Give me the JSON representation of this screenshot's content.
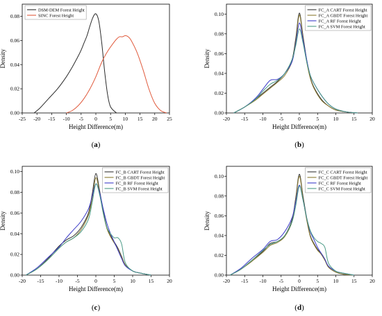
{
  "chart_data": [
    {
      "type": "line",
      "panel_label": "a",
      "xlabel": "Height Difference(m)",
      "ylabel": "Density",
      "xlim": [
        -25,
        25
      ],
      "ylim": [
        0,
        0.09
      ],
      "xticks": [
        -25,
        -20,
        -15,
        -10,
        -5,
        0,
        5,
        10,
        15,
        20,
        25
      ],
      "yticks": [
        0,
        0.02,
        0.04,
        0.06,
        0.08
      ],
      "ytick_labels": [
        "0.00",
        "0.02",
        "0.04",
        "0.06",
        "0.08"
      ],
      "legend_position": "top-left",
      "series": [
        {
          "name": "DSM-DEM Forest Height",
          "color": "#2b2b2b",
          "x": [
            -21,
            -19,
            -16,
            -13,
            -10,
            -8,
            -6,
            -5,
            -4,
            -3,
            -2,
            -1,
            0,
            1,
            2,
            3,
            4,
            5,
            7
          ],
          "y": [
            0,
            0.004,
            0.012,
            0.02,
            0.03,
            0.038,
            0.047,
            0.052,
            0.058,
            0.064,
            0.072,
            0.079,
            0.082,
            0.076,
            0.058,
            0.034,
            0.015,
            0.005,
            0
          ]
        },
        {
          "name": "SINC Forest Height",
          "color": "#e05a3c",
          "x": [
            -10,
            -8,
            -6,
            -4,
            -2,
            0,
            2,
            4,
            6,
            7,
            8,
            9,
            10,
            11,
            12,
            14,
            16,
            18,
            20,
            22,
            24
          ],
          "y": [
            0,
            0.002,
            0.006,
            0.012,
            0.02,
            0.03,
            0.042,
            0.051,
            0.058,
            0.061,
            0.063,
            0.063,
            0.064,
            0.063,
            0.06,
            0.05,
            0.036,
            0.02,
            0.008,
            0.002,
            0
          ]
        }
      ]
    },
    {
      "type": "line",
      "panel_label": "b",
      "xlabel": "Height Difference(m)",
      "ylabel": "Density",
      "xlim": [
        -20,
        20
      ],
      "ylim": [
        0,
        0.11
      ],
      "xticks": [
        -20,
        -15,
        -10,
        -5,
        0,
        5,
        10,
        15,
        20
      ],
      "yticks": [
        0,
        0.02,
        0.04,
        0.06,
        0.08,
        0.1
      ],
      "ytick_labels": [
        "0.00",
        "0.02",
        "0.04",
        "0.06",
        "0.08",
        "0.10"
      ],
      "legend_position": "top-right",
      "series": [
        {
          "name": "FC_A CART Forest Height",
          "color": "#333333",
          "x": [
            -18,
            -15,
            -12,
            -10,
            -8,
            -6,
            -4,
            -2,
            -1,
            0,
            1,
            2,
            3,
            4,
            6,
            8,
            10,
            13,
            16
          ],
          "y": [
            0,
            0.006,
            0.014,
            0.02,
            0.026,
            0.032,
            0.04,
            0.054,
            0.075,
            0.101,
            0.078,
            0.054,
            0.036,
            0.026,
            0.014,
            0.007,
            0.003,
            0.001,
            0
          ]
        },
        {
          "name": "FC_A GBDT Forest Height",
          "color": "#8a7a30",
          "x": [
            -18,
            -15,
            -12,
            -10,
            -8,
            -6,
            -4,
            -2,
            -1,
            0,
            1,
            2,
            3,
            4,
            6,
            8,
            10,
            13,
            16
          ],
          "y": [
            0,
            0.006,
            0.013,
            0.019,
            0.025,
            0.031,
            0.038,
            0.052,
            0.072,
            0.099,
            0.076,
            0.052,
            0.035,
            0.025,
            0.013,
            0.007,
            0.003,
            0.001,
            0
          ]
        },
        {
          "name": "FC_A RF Forest Height",
          "color": "#3b3bc8",
          "x": [
            -18,
            -15,
            -12,
            -10,
            -8,
            -6,
            -4,
            -2,
            -1,
            0,
            1,
            2,
            3,
            4,
            6,
            8,
            10,
            13,
            16
          ],
          "y": [
            0,
            0.006,
            0.015,
            0.024,
            0.033,
            0.034,
            0.04,
            0.052,
            0.07,
            0.091,
            0.074,
            0.054,
            0.038,
            0.03,
            0.018,
            0.009,
            0.004,
            0.001,
            0
          ]
        },
        {
          "name": "FC_A SVM Forest Height",
          "color": "#4a9a86",
          "x": [
            -18,
            -15,
            -12,
            -10,
            -8,
            -6,
            -4,
            -2,
            -1,
            0,
            1,
            2,
            3,
            4,
            6,
            8,
            10,
            13,
            16
          ],
          "y": [
            0,
            0.006,
            0.014,
            0.022,
            0.029,
            0.033,
            0.04,
            0.054,
            0.068,
            0.085,
            0.071,
            0.052,
            0.038,
            0.03,
            0.018,
            0.009,
            0.004,
            0.001,
            0
          ]
        }
      ]
    },
    {
      "type": "line",
      "panel_label": "c",
      "xlabel": "Height Difference(m)",
      "ylabel": "Density",
      "xlim": [
        -20,
        20
      ],
      "ylim": [
        0,
        0.105
      ],
      "xticks": [
        -20,
        -15,
        -10,
        -5,
        0,
        5,
        10,
        15,
        20
      ],
      "yticks": [
        0,
        0.02,
        0.04,
        0.06,
        0.08,
        0.1
      ],
      "ytick_labels": [
        "0.00",
        "0.02",
        "0.04",
        "0.06",
        "0.08",
        "0.10"
      ],
      "legend_position": "top-right",
      "series": [
        {
          "name": "FC_B CART Forest Height",
          "color": "#333333",
          "x": [
            -19,
            -16,
            -13,
            -10,
            -8,
            -6,
            -4,
            -2,
            -1,
            0,
            1,
            2,
            3,
            4,
            5,
            6,
            7,
            8,
            10,
            12,
            15
          ],
          "y": [
            0,
            0.006,
            0.016,
            0.028,
            0.034,
            0.038,
            0.046,
            0.06,
            0.078,
            0.098,
            0.082,
            0.062,
            0.046,
            0.038,
            0.032,
            0.026,
            0.018,
            0.01,
            0.004,
            0.002,
            0
          ]
        },
        {
          "name": "FC_B GBDT Forest Height",
          "color": "#8a7a30",
          "x": [
            -19,
            -16,
            -13,
            -10,
            -8,
            -6,
            -4,
            -2,
            -1,
            0,
            1,
            2,
            3,
            4,
            5,
            6,
            7,
            8,
            10,
            12,
            15
          ],
          "y": [
            0,
            0.006,
            0.015,
            0.026,
            0.032,
            0.036,
            0.044,
            0.058,
            0.074,
            0.094,
            0.08,
            0.06,
            0.045,
            0.037,
            0.031,
            0.025,
            0.017,
            0.01,
            0.004,
            0.002,
            0
          ]
        },
        {
          "name": "FC_B RF Forest Height",
          "color": "#3b3bc8",
          "x": [
            -19,
            -16,
            -13,
            -10,
            -8,
            -6,
            -4,
            -2,
            -1,
            0,
            1,
            2,
            3,
            4,
            5,
            6,
            7,
            8,
            10,
            12,
            15
          ],
          "y": [
            0,
            0.007,
            0.017,
            0.027,
            0.036,
            0.044,
            0.052,
            0.064,
            0.076,
            0.088,
            0.08,
            0.064,
            0.05,
            0.04,
            0.032,
            0.024,
            0.016,
            0.009,
            0.004,
            0.002,
            0
          ]
        },
        {
          "name": "FC_B SVM Forest Height",
          "color": "#4a9a86",
          "x": [
            -19,
            -16,
            -13,
            -10,
            -8,
            -6,
            -4,
            -2,
            -1,
            0,
            1,
            2,
            3,
            4,
            5,
            6,
            7,
            8,
            10,
            12,
            15
          ],
          "y": [
            0,
            0.006,
            0.015,
            0.026,
            0.032,
            0.036,
            0.042,
            0.054,
            0.07,
            0.088,
            0.078,
            0.06,
            0.046,
            0.04,
            0.036,
            0.036,
            0.03,
            0.012,
            0.004,
            0.002,
            0
          ]
        }
      ]
    },
    {
      "type": "line",
      "panel_label": "d",
      "xlabel": "Height Difference(m)",
      "ylabel": "Density",
      "xlim": [
        -20,
        20
      ],
      "ylim": [
        0,
        0.11
      ],
      "xticks": [
        -20,
        -15,
        -10,
        -5,
        0,
        5,
        10,
        15,
        20
      ],
      "yticks": [
        0,
        0.02,
        0.04,
        0.06,
        0.08,
        0.1
      ],
      "ytick_labels": [
        "0.00",
        "0.02",
        "0.04",
        "0.06",
        "0.08",
        "0.10"
      ],
      "legend_position": "top-right",
      "series": [
        {
          "name": "FC_C CART Forest Height",
          "color": "#333333",
          "x": [
            -19,
            -16,
            -13,
            -10,
            -8,
            -6,
            -4,
            -2,
            -1,
            0,
            1,
            2,
            3,
            4,
            5,
            6,
            7,
            8,
            10,
            12,
            15
          ],
          "y": [
            0,
            0.006,
            0.015,
            0.024,
            0.032,
            0.034,
            0.04,
            0.056,
            0.078,
            0.102,
            0.08,
            0.058,
            0.04,
            0.032,
            0.026,
            0.022,
            0.016,
            0.008,
            0.003,
            0.001,
            0
          ]
        },
        {
          "name": "FC_C GBDT Forest Height",
          "color": "#8a7a30",
          "x": [
            -19,
            -16,
            -13,
            -10,
            -8,
            -6,
            -4,
            -2,
            -1,
            0,
            1,
            2,
            3,
            4,
            5,
            6,
            7,
            8,
            10,
            12,
            15
          ],
          "y": [
            0,
            0.006,
            0.014,
            0.023,
            0.03,
            0.033,
            0.039,
            0.054,
            0.076,
            0.1,
            0.078,
            0.056,
            0.039,
            0.031,
            0.025,
            0.021,
            0.015,
            0.008,
            0.003,
            0.001,
            0
          ]
        },
        {
          "name": "FC_C RF Forest Height",
          "color": "#3b3bc8",
          "x": [
            -19,
            -16,
            -13,
            -10,
            -8,
            -6,
            -4,
            -2,
            -1,
            0,
            1,
            2,
            3,
            4,
            5,
            6,
            7,
            8,
            10,
            12,
            15
          ],
          "y": [
            0,
            0.007,
            0.017,
            0.026,
            0.034,
            0.036,
            0.044,
            0.058,
            0.074,
            0.091,
            0.076,
            0.058,
            0.044,
            0.036,
            0.028,
            0.022,
            0.016,
            0.009,
            0.004,
            0.002,
            0
          ]
        },
        {
          "name": "FC_C SVM Forest Height",
          "color": "#4a9a86",
          "x": [
            -19,
            -16,
            -13,
            -10,
            -8,
            -6,
            -4,
            -2,
            -1,
            0,
            1,
            2,
            3,
            4,
            5,
            6,
            7,
            8,
            10,
            12,
            15
          ],
          "y": [
            0,
            0.006,
            0.015,
            0.025,
            0.031,
            0.034,
            0.04,
            0.054,
            0.07,
            0.09,
            0.076,
            0.058,
            0.045,
            0.038,
            0.034,
            0.032,
            0.028,
            0.012,
            0.004,
            0.002,
            0
          ]
        }
      ]
    }
  ]
}
